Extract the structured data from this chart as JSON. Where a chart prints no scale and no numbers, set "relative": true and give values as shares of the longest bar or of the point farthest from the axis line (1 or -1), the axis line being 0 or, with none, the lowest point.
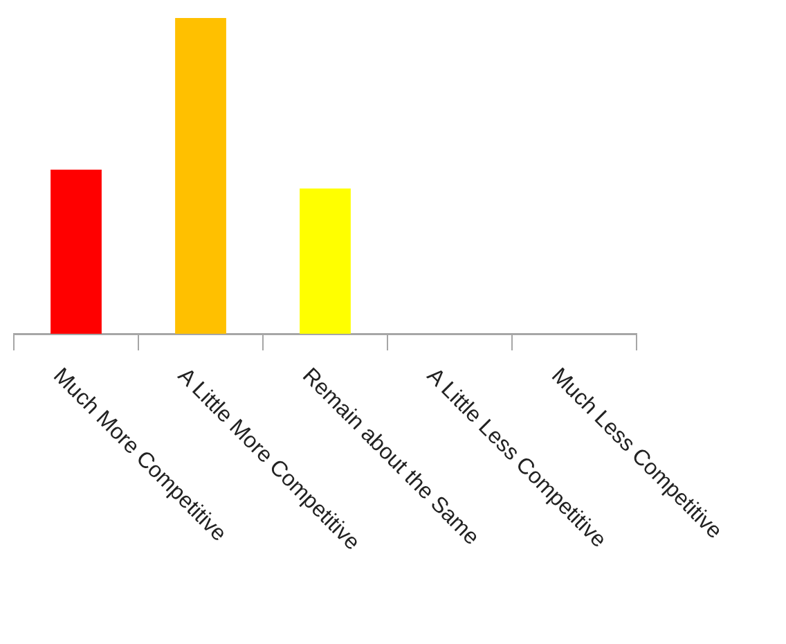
{
  "chart_data": {
    "type": "bar",
    "categories": [
      "Much More Competitive",
      "A Little More Competitive",
      "Remain about the Same",
      "A Little Less Competitive",
      "Much Less Competitive"
    ],
    "values": [
      0.52,
      1,
      0.46,
      0,
      0
    ],
    "colors": [
      "#ff0000",
      "#ffc000",
      "#ffff00",
      "#ffff00",
      "#ffff00"
    ],
    "relative": true
  }
}
